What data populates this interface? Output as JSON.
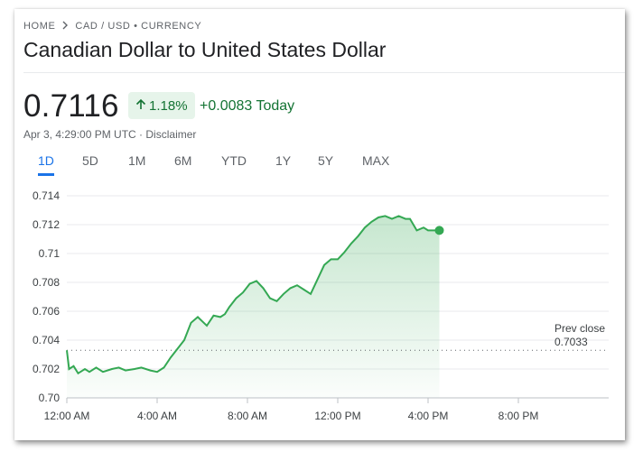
{
  "breadcrumb": {
    "home": "HOME",
    "current": "CAD / USD • CURRENCY"
  },
  "title": "Canadian Dollar to United States Dollar",
  "price": "0.7116",
  "badge": {
    "percent": "1.18%",
    "icon": "arrow-up-icon"
  },
  "change_today": "+0.0083 Today",
  "meta": {
    "timestamp": "Apr 3, 4:29:00 PM UTC",
    "separator": " · ",
    "disclaimer": "Disclaimer"
  },
  "tabs": [
    "1D",
    "5D",
    "1M",
    "6M",
    "YTD",
    "1Y",
    "5Y",
    "MAX"
  ],
  "active_tab": "1D",
  "prev_close": {
    "label": "Prev close",
    "value": "0.7033"
  },
  "colors": {
    "line": "#34a853",
    "accent": "#1a73e8",
    "up": "#137333",
    "badge_bg": "#e6f4ea"
  },
  "chart_data": {
    "type": "line",
    "x_ticks": [
      "12:00 AM",
      "4:00 AM",
      "8:00 AM",
      "12:00 PM",
      "4:00 PM",
      "8:00 PM"
    ],
    "y_ticks": [
      "0.714",
      "0.712",
      "0.71",
      "0.708",
      "0.706",
      "0.704",
      "0.702",
      "0.70"
    ],
    "ylim": [
      0.7,
      0.714
    ],
    "xlim_hours": [
      0,
      23
    ],
    "prev_close": 0.7033,
    "series": [
      {
        "x_hours": [
          0,
          0.1,
          0.3,
          0.5,
          0.8,
          1.0,
          1.3,
          1.6,
          2.0,
          2.3,
          2.6,
          3.0,
          3.3,
          3.7,
          4.0,
          4.3,
          4.6,
          4.9,
          5.2,
          5.5,
          5.8,
          6.0,
          6.2,
          6.5,
          6.8,
          7.0,
          7.2,
          7.5,
          7.8,
          8.1,
          8.4,
          8.7,
          9.0,
          9.3,
          9.6,
          9.9,
          10.2,
          10.5,
          10.8,
          11.1,
          11.4,
          11.7,
          12.0,
          12.3,
          12.6,
          12.9,
          13.2,
          13.5,
          13.8,
          14.1,
          14.4,
          14.7,
          15.0,
          15.2,
          15.5,
          15.8,
          16.0,
          16.2,
          16.5
        ],
        "values": [
          0.7033,
          0.702,
          0.7022,
          0.7017,
          0.702,
          0.7018,
          0.7021,
          0.7018,
          0.702,
          0.7021,
          0.7019,
          0.702,
          0.7021,
          0.7019,
          0.7018,
          0.7021,
          0.7028,
          0.7034,
          0.704,
          0.7052,
          0.7056,
          0.7053,
          0.705,
          0.7057,
          0.7056,
          0.7058,
          0.7063,
          0.7069,
          0.7073,
          0.7079,
          0.7081,
          0.7076,
          0.7069,
          0.7067,
          0.7072,
          0.7076,
          0.7078,
          0.7075,
          0.7072,
          0.7082,
          0.7092,
          0.7096,
          0.7096,
          0.7101,
          0.7107,
          0.7112,
          0.7118,
          0.7122,
          0.7125,
          0.7126,
          0.7124,
          0.7126,
          0.7124,
          0.7124,
          0.7116,
          0.7118,
          0.7116,
          0.7116,
          0.7116
        ]
      }
    ]
  }
}
